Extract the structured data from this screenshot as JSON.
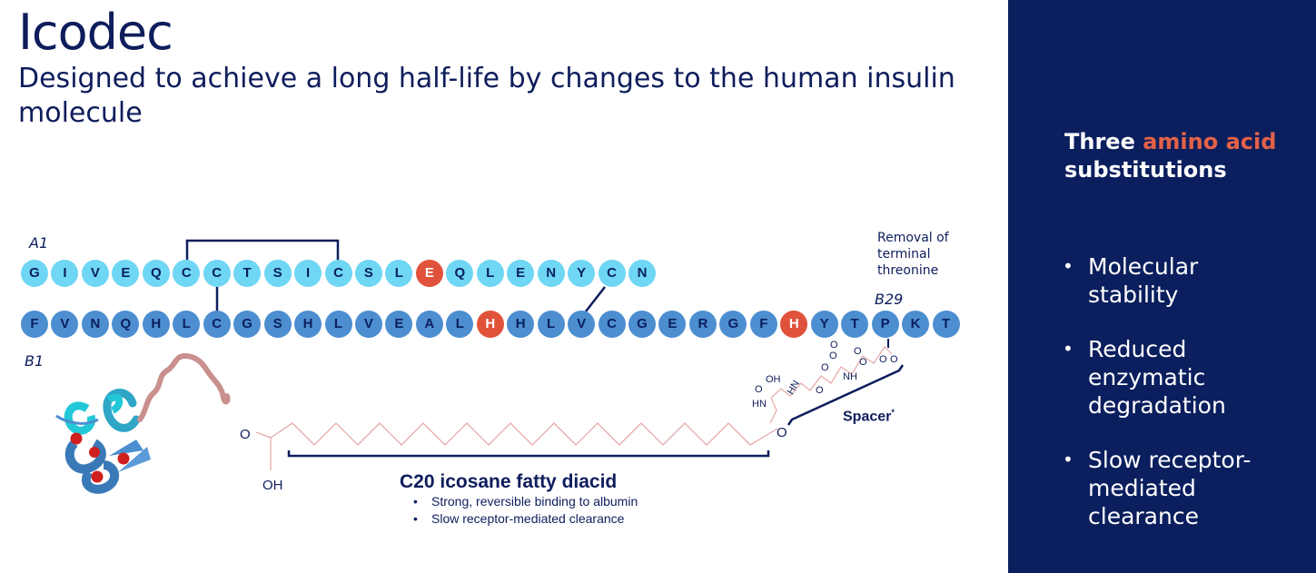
{
  "title": "Icodec",
  "subtitle": "Designed to achieve a long half-life by changes to the human insulin molecule",
  "sidebar": {
    "heading_pre": "Three ",
    "heading_accent": "amino acid",
    "heading_post": "substitutions",
    "bullets": [
      "Molecular stability",
      "Reduced enzymatic degradation",
      "Slow receptor-mediated clearance"
    ],
    "accent_color": "#e46248"
  },
  "a_chain": {
    "label": "A1",
    "residues": [
      "G",
      "I",
      "V",
      "E",
      "Q",
      "C",
      "C",
      "T",
      "S",
      "I",
      "C",
      "S",
      "L",
      "E",
      "Q",
      "L",
      "E",
      "N",
      "Y",
      "C",
      "N"
    ],
    "substituted_index": 13
  },
  "b_chain": {
    "start_label": "B1",
    "end_label": "B29",
    "residues": [
      "F",
      "V",
      "N",
      "Q",
      "H",
      "L",
      "C",
      "G",
      "S",
      "H",
      "L",
      "V",
      "E",
      "A",
      "L",
      "H",
      "H",
      "L",
      "V",
      "C",
      "G",
      "E",
      "R",
      "G",
      "F",
      "H",
      "Y",
      "T",
      "P",
      "K",
      "T"
    ],
    "substituted_indices": [
      15,
      25
    ]
  },
  "removal_note": "Removal of terminal threonine",
  "fatty_diacid": {
    "title": "C20 icosane fatty diacid",
    "bullets": [
      "Strong, reversible binding to albumin",
      "Slow receptor-mediated clearance"
    ],
    "o_label": "O",
    "oh_label": "OH"
  },
  "spacer": {
    "label": "Spacer",
    "footnote": "*",
    "atoms": [
      "OH",
      "O",
      "HN",
      "O",
      "HN",
      "O",
      "O",
      "NH",
      "O",
      "O",
      "O",
      "O",
      "O"
    ]
  },
  "colors": {
    "a_chain": "#6fd6f4",
    "b_chain": "#4c8ed0",
    "substitution": "#e1523a",
    "navy": "#0b1f5e"
  }
}
